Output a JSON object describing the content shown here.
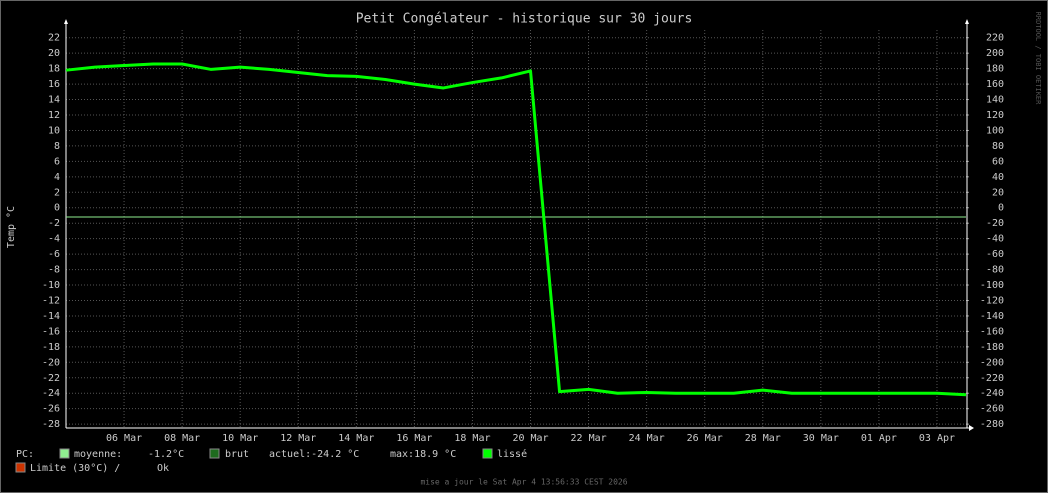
{
  "chart_data": {
    "type": "line",
    "title": "Petit Congélateur - historique sur 30 jours",
    "y_label": "Temp °C",
    "watermark": "RRDTOOL / TOBI OETIKER",
    "footer": "mise a jour le Sat Apr  4 13:56:33 CEST 2026",
    "legend_prefix": "PC:",
    "x": [
      "2026-03-04",
      "2026-03-05",
      "2026-03-06",
      "2026-03-07",
      "2026-03-08",
      "2026-03-09",
      "2026-03-10",
      "2026-03-11",
      "2026-03-12",
      "2026-03-13",
      "2026-03-14",
      "2026-03-15",
      "2026-03-16",
      "2026-03-17",
      "2026-03-18",
      "2026-03-19",
      "2026-03-20",
      "2026-03-21",
      "2026-03-22",
      "2026-03-23",
      "2026-03-24",
      "2026-03-25",
      "2026-03-26",
      "2026-03-27",
      "2026-03-28",
      "2026-03-29",
      "2026-03-30",
      "2026-03-31",
      "2026-04-01",
      "2026-04-02",
      "2026-04-03",
      "2026-04-04"
    ],
    "series": [
      {
        "name": "lissé",
        "color": "#00ff00",
        "values": [
          17.8,
          18.2,
          18.4,
          18.6,
          18.6,
          17.9,
          18.2,
          17.9,
          17.5,
          17.1,
          17.0,
          16.6,
          16.0,
          15.5,
          16.2,
          16.8,
          17.7,
          -23.8,
          -23.5,
          -24.0,
          -23.9,
          -24.0,
          -24.0,
          -24.0,
          -23.6,
          -24.0,
          -24.0,
          -24.0,
          -24.0,
          -24.0,
          -24.0,
          -24.2
        ]
      }
    ],
    "mean": {
      "name": "moyenne:",
      "value": -1.2,
      "label": "-1.2°C",
      "color": "#90ee90"
    },
    "raw": {
      "name": "brut",
      "color": "#1e6b1e",
      "current_label": "actuel:-24.2 °C",
      "max_label": "max:18.9 °C"
    },
    "limit": {
      "name": "Limite (30°C) /",
      "status": "Ok",
      "color": "#cc3300"
    },
    "xlim": [
      "2026-03-04",
      "2026-04-04"
    ],
    "xticks": [
      {
        "value": "2026-03-06",
        "label": "06 Mar"
      },
      {
        "value": "2026-03-08",
        "label": "08 Mar"
      },
      {
        "value": "2026-03-10",
        "label": "10 Mar"
      },
      {
        "value": "2026-03-12",
        "label": "12 Mar"
      },
      {
        "value": "2026-03-14",
        "label": "14 Mar"
      },
      {
        "value": "2026-03-16",
        "label": "16 Mar"
      },
      {
        "value": "2026-03-18",
        "label": "18 Mar"
      },
      {
        "value": "2026-03-20",
        "label": "20 Mar"
      },
      {
        "value": "2026-03-22",
        "label": "22 Mar"
      },
      {
        "value": "2026-03-24",
        "label": "24 Mar"
      },
      {
        "value": "2026-03-26",
        "label": "26 Mar"
      },
      {
        "value": "2026-03-28",
        "label": "28 Mar"
      },
      {
        "value": "2026-03-30",
        "label": "30 Mar"
      },
      {
        "value": "2026-04-01",
        "label": "01 Apr"
      },
      {
        "value": "2026-04-03",
        "label": "03 Apr"
      }
    ],
    "ylim": [
      -28.5,
      23
    ],
    "yticks": [
      -28,
      -26,
      -24,
      -22,
      -20,
      -18,
      -16,
      -14,
      -12,
      -10,
      -8,
      -6,
      -4,
      -2,
      0,
      2,
      4,
      6,
      8,
      10,
      12,
      14,
      16,
      18,
      20,
      22
    ],
    "y2lim": [
      -285,
      230
    ],
    "y2ticks": [
      -280,
      -260,
      -240,
      -220,
      -200,
      -180,
      -160,
      -140,
      -120,
      -100,
      -80,
      -60,
      -40,
      -20,
      0,
      20,
      40,
      60,
      80,
      100,
      120,
      140,
      160,
      180,
      200,
      220
    ],
    "grid": true
  }
}
